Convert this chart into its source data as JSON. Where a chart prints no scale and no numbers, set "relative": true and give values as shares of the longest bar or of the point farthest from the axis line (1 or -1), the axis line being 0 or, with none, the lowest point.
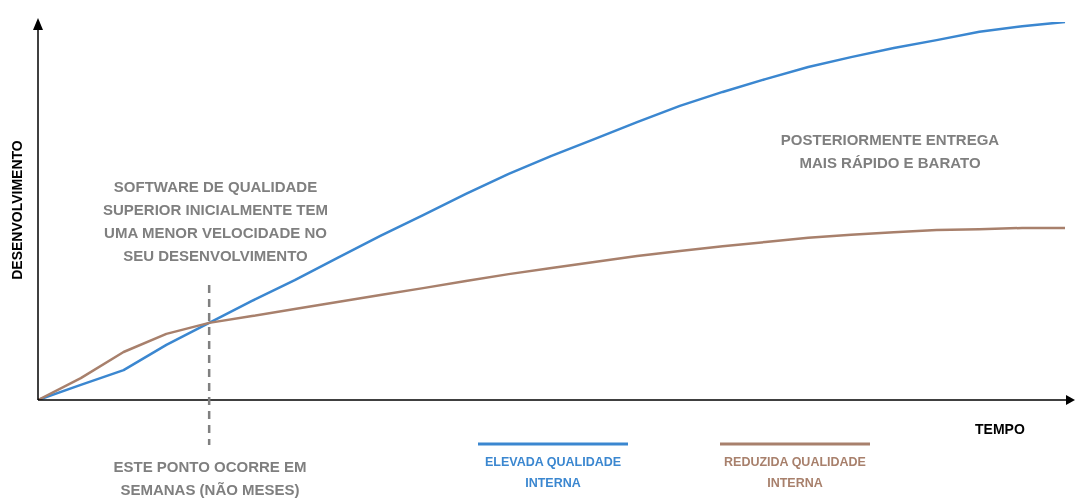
{
  "chart_data": {
    "type": "line",
    "relative": true,
    "xlabel": "TEMPO",
    "ylabel": "DESENVOLVIMENTO",
    "legend": "bottom",
    "grid": false,
    "marker": "none",
    "line_style": "solid",
    "categories": [
      null,
      null,
      null,
      null,
      null,
      null,
      null,
      null,
      null,
      null,
      null,
      null,
      null,
      null,
      null,
      null,
      null,
      null,
      null,
      null,
      null,
      null,
      null,
      null,
      null
    ],
    "series": [
      {
        "name": "ELEVADA QUALIDADE INTERNA",
        "color": "#3b87d0",
        "values": [
          0,
          0.04,
          0.079,
          0.146,
          0.204,
          0.262,
          0.317,
          0.376,
          0.434,
          0.489,
          0.545,
          0.598,
          0.646,
          0.69,
          0.735,
          0.778,
          0.815,
          0.849,
          0.881,
          0.907,
          0.931,
          0.952,
          0.974,
          0.989,
          1
        ]
      },
      {
        "name": "REDUZIDA QUALIDADE INTERNA",
        "color": "#a8806c",
        "values": [
          0,
          0.058,
          0.127,
          0.175,
          0.204,
          0.222,
          0.241,
          0.259,
          0.278,
          0.296,
          0.315,
          0.333,
          0.349,
          0.365,
          0.381,
          0.394,
          0.407,
          0.418,
          0.429,
          0.437,
          0.444,
          0.45,
          0.452,
          0.455,
          0.455
        ]
      }
    ],
    "annotations": [
      "SOFTWARE DE QUALIDADE SUPERIOR INICIALMENTE TEM UMA MENOR VELOCIDADE NO SEU DESENVOLVIMENTO",
      "POSTERIORMENTE ENTREGA MAIS RÁPIDO E BARATO",
      "ESTE PONTO OCORRE EM SEMANAS (NÃO MESES)"
    ]
  }
}
